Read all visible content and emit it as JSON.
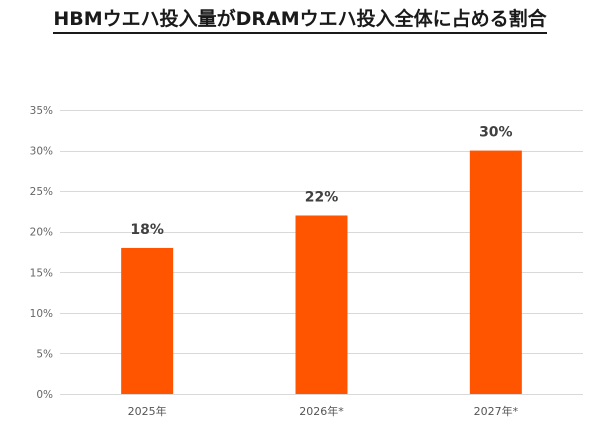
{
  "chart_data": {
    "type": "bar",
    "title": "HBMウエハ投入量がDRAMウエハ投入全体に占める割合",
    "xlabel": "",
    "ylabel": "",
    "categories": [
      "2025年",
      "2026年*",
      "2027年*"
    ],
    "values": [
      18,
      22,
      30
    ],
    "data_labels": [
      "18%",
      "22%",
      "30%"
    ],
    "ylim": [
      0,
      35
    ],
    "y_ticks": [
      0,
      5,
      10,
      15,
      20,
      25,
      30,
      35
    ],
    "y_tick_labels": [
      "0%",
      "5%",
      "10%",
      "15%",
      "20%",
      "25%",
      "30%",
      "35%"
    ],
    "grid": true,
    "legend": "none",
    "bar_color": "#FF5500",
    "grid_color": "#D9D9D9"
  }
}
